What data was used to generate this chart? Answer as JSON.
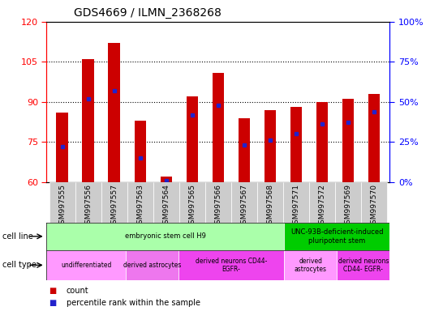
{
  "title": "GDS4669 / ILMN_2368268",
  "samples": [
    "GSM997555",
    "GSM997556",
    "GSM997557",
    "GSM997563",
    "GSM997564",
    "GSM997565",
    "GSM997566",
    "GSM997567",
    "GSM997568",
    "GSM997571",
    "GSM997572",
    "GSM997569",
    "GSM997570"
  ],
  "count_values": [
    86,
    106,
    112,
    83,
    62,
    92,
    101,
    84,
    87,
    88,
    90,
    91,
    93
  ],
  "percentile_values": [
    22,
    52,
    57,
    15,
    1,
    42,
    48,
    23,
    26,
    30,
    36,
    37,
    44
  ],
  "ylim_left": [
    60,
    120
  ],
  "ylim_right": [
    0,
    100
  ],
  "yticks_left": [
    60,
    75,
    90,
    105,
    120
  ],
  "yticks_right": [
    0,
    25,
    50,
    75,
    100
  ],
  "bar_color": "#cc0000",
  "dot_color": "#2222cc",
  "cell_line_groups": [
    {
      "label": "embryonic stem cell H9",
      "start": 0,
      "end": 9,
      "color": "#aaffaa"
    },
    {
      "label": "UNC-93B-deficient-induced\npluripotent stem",
      "start": 9,
      "end": 13,
      "color": "#00cc00"
    }
  ],
  "cell_type_groups": [
    {
      "label": "undifferentiated",
      "start": 0,
      "end": 3,
      "color": "#ff99ff"
    },
    {
      "label": "derived astrocytes",
      "start": 3,
      "end": 5,
      "color": "#ee77ee"
    },
    {
      "label": "derived neurons CD44-\nEGFR-",
      "start": 5,
      "end": 9,
      "color": "#ee44ee"
    },
    {
      "label": "derived\nastrocytes",
      "start": 9,
      "end": 11,
      "color": "#ff99ff"
    },
    {
      "label": "derived neurons\nCD44- EGFR-",
      "start": 11,
      "end": 13,
      "color": "#ee44ee"
    }
  ],
  "legend_count_label": "count",
  "legend_percentile_label": "percentile rank within the sample",
  "cell_line_label": "cell line",
  "cell_type_label": "cell type",
  "xtick_bg_color": "#cccccc",
  "xtick_fontsize": 6.5,
  "bar_width": 0.45
}
